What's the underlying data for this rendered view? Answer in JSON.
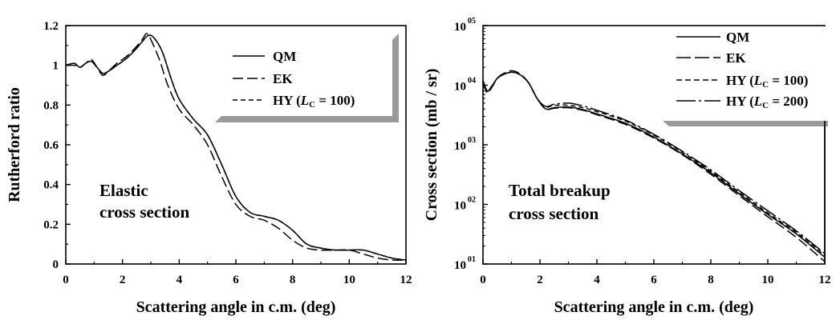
{
  "chart_data": [
    {
      "type": "line",
      "xlabel": "Scattering angle in c.m. (deg)",
      "ylabel": "Rutherford ratio",
      "xlim": [
        0,
        12
      ],
      "ylim": [
        0,
        1.2
      ],
      "xticks": [
        "0",
        "2",
        "4",
        "6",
        "8",
        "10",
        "12"
      ],
      "yticks": [
        "0",
        "0.2",
        "0.4",
        "0.6",
        "0.8",
        "1",
        "1.2"
      ],
      "annotation": [
        "Elastic",
        "cross section"
      ],
      "legend": {
        "position": "top-right",
        "entries": [
          "QM",
          "EK",
          "HY (L_C = 100)"
        ]
      },
      "series": [
        {
          "name": "QM",
          "dash": "solid",
          "x": [
            0,
            0.3,
            0.5,
            0.7,
            0.9,
            1.1,
            1.3,
            1.5,
            1.8,
            2.1,
            2.4,
            2.7,
            2.9,
            3.1,
            3.4,
            3.7,
            4.0,
            4.5,
            5.0,
            5.5,
            6.0,
            6.5,
            7.0,
            7.5,
            8.0,
            8.5,
            9.0,
            9.5,
            10.0,
            10.5,
            11.0,
            11.5,
            12.0
          ],
          "y": [
            1.0,
            1.01,
            0.99,
            1.01,
            1.02,
            0.99,
            0.96,
            0.97,
            1.0,
            1.03,
            1.07,
            1.12,
            1.15,
            1.14,
            1.07,
            0.94,
            0.83,
            0.73,
            0.65,
            0.5,
            0.34,
            0.26,
            0.24,
            0.22,
            0.17,
            0.1,
            0.08,
            0.07,
            0.07,
            0.07,
            0.05,
            0.03,
            0.02
          ]
        },
        {
          "name": "EK",
          "dash": "long-dash",
          "x": [
            0,
            0.3,
            0.5,
            0.7,
            0.9,
            1.1,
            1.3,
            1.5,
            1.8,
            2.1,
            2.4,
            2.7,
            2.85,
            3.0,
            3.3,
            3.6,
            4.0,
            4.5,
            5.0,
            5.5,
            6.0,
            6.5,
            7.0,
            7.5,
            8.0,
            8.5,
            9.0,
            9.5,
            10.0,
            10.5,
            11.0,
            11.5,
            12.0
          ],
          "y": [
            1.0,
            1.0,
            0.99,
            1.01,
            1.03,
            0.99,
            0.95,
            0.97,
            1.01,
            1.04,
            1.08,
            1.13,
            1.16,
            1.13,
            1.03,
            0.9,
            0.78,
            0.7,
            0.6,
            0.44,
            0.3,
            0.24,
            0.22,
            0.18,
            0.12,
            0.08,
            0.07,
            0.07,
            0.07,
            0.05,
            0.03,
            0.02,
            0.02
          ]
        },
        {
          "name": "HY (L_C = 100)",
          "dash": "short-dash",
          "x": [
            0,
            0.3,
            0.5,
            0.7,
            0.9,
            1.1,
            1.3,
            1.5,
            1.8,
            2.1,
            2.4,
            2.7,
            2.9,
            3.1,
            3.4,
            3.7,
            4.0,
            4.5,
            5.0,
            5.5,
            6.0,
            6.5,
            7.0,
            7.5,
            8.0,
            8.5,
            9.0,
            9.5,
            10.0,
            10.5,
            11.0,
            11.5,
            12.0
          ],
          "y": [
            1.0,
            1.01,
            0.99,
            1.01,
            1.02,
            0.99,
            0.96,
            0.97,
            1.0,
            1.03,
            1.07,
            1.12,
            1.15,
            1.14,
            1.07,
            0.94,
            0.83,
            0.73,
            0.65,
            0.5,
            0.34,
            0.26,
            0.24,
            0.22,
            0.17,
            0.1,
            0.08,
            0.07,
            0.07,
            0.07,
            0.05,
            0.03,
            0.02
          ]
        }
      ]
    },
    {
      "type": "line",
      "xlabel": "Scattering angle in c.m. (deg)",
      "ylabel": "Cross section (mb / sr)",
      "yscale": "log",
      "xlim": [
        0,
        12
      ],
      "ylim": [
        10,
        100000
      ],
      "xticks": [
        "0",
        "2",
        "4",
        "6",
        "8",
        "10",
        "12"
      ],
      "yticks": [
        {
          "base": "10",
          "exp": "01"
        },
        {
          "base": "10",
          "exp": "02"
        },
        {
          "base": "10",
          "exp": "03"
        },
        {
          "base": "10",
          "exp": "04"
        },
        {
          "base": "10",
          "exp": "05"
        }
      ],
      "annotation": [
        "Total breakup",
        "cross section"
      ],
      "legend": {
        "position": "top-right",
        "entries": [
          "QM",
          "EK",
          "HY (L_C = 100)",
          "HY (L_C = 200)"
        ]
      },
      "series": [
        {
          "name": "QM",
          "dash": "solid",
          "x": [
            0,
            0.15,
            0.3,
            0.5,
            0.7,
            1.0,
            1.3,
            1.6,
            1.9,
            2.2,
            2.5,
            3.0,
            3.5,
            4.0,
            5.0,
            6.0,
            7.0,
            8.0,
            9.0,
            10.0,
            11.0,
            12.0
          ],
          "y": [
            12000,
            8000,
            9500,
            13000,
            15000,
            16500,
            15000,
            11000,
            6000,
            4000,
            4200,
            4300,
            3900,
            3300,
            2300,
            1350,
            700,
            340,
            150,
            68,
            32,
            13
          ]
        },
        {
          "name": "EK",
          "dash": "long-dash",
          "x": [
            0,
            0.15,
            0.3,
            0.5,
            0.7,
            1.0,
            1.3,
            1.6,
            1.9,
            2.2,
            2.5,
            3.0,
            3.5,
            4.0,
            5.0,
            6.0,
            7.0,
            8.0,
            9.0,
            10.0,
            11.0,
            12.0
          ],
          "y": [
            11000,
            7500,
            9000,
            13000,
            15500,
            17500,
            15500,
            11000,
            6000,
            4000,
            4100,
            4200,
            3800,
            3200,
            2200,
            1300,
            680,
            320,
            140,
            62,
            28,
            11
          ]
        },
        {
          "name": "HY (L_C = 100)",
          "dash": "short-dash",
          "x": [
            0,
            0.15,
            0.3,
            0.5,
            0.7,
            1.0,
            1.3,
            1.6,
            1.9,
            2.2,
            2.5,
            3.0,
            3.5,
            4.0,
            5.0,
            6.0,
            7.0,
            8.0,
            9.0,
            10.0,
            11.0,
            12.0
          ],
          "y": [
            12000,
            8000,
            9500,
            13000,
            15000,
            16500,
            15000,
            11000,
            6000,
            4300,
            4600,
            4600,
            4200,
            3600,
            2500,
            1450,
            750,
            360,
            160,
            72,
            34,
            14
          ]
        },
        {
          "name": "HY (L_C = 200)",
          "dash": "dash-dot",
          "x": [
            0,
            0.15,
            0.3,
            0.5,
            0.7,
            1.0,
            1.3,
            1.6,
            1.9,
            2.2,
            2.5,
            3.0,
            3.5,
            4.0,
            5.0,
            6.0,
            7.0,
            8.0,
            9.0,
            10.0,
            11.0,
            12.0
          ],
          "y": [
            12000,
            8000,
            9500,
            13000,
            15000,
            16500,
            15000,
            11000,
            6000,
            4400,
            4800,
            5000,
            4500,
            3800,
            2600,
            1500,
            780,
            380,
            170,
            78,
            36,
            15
          ]
        }
      ]
    }
  ]
}
